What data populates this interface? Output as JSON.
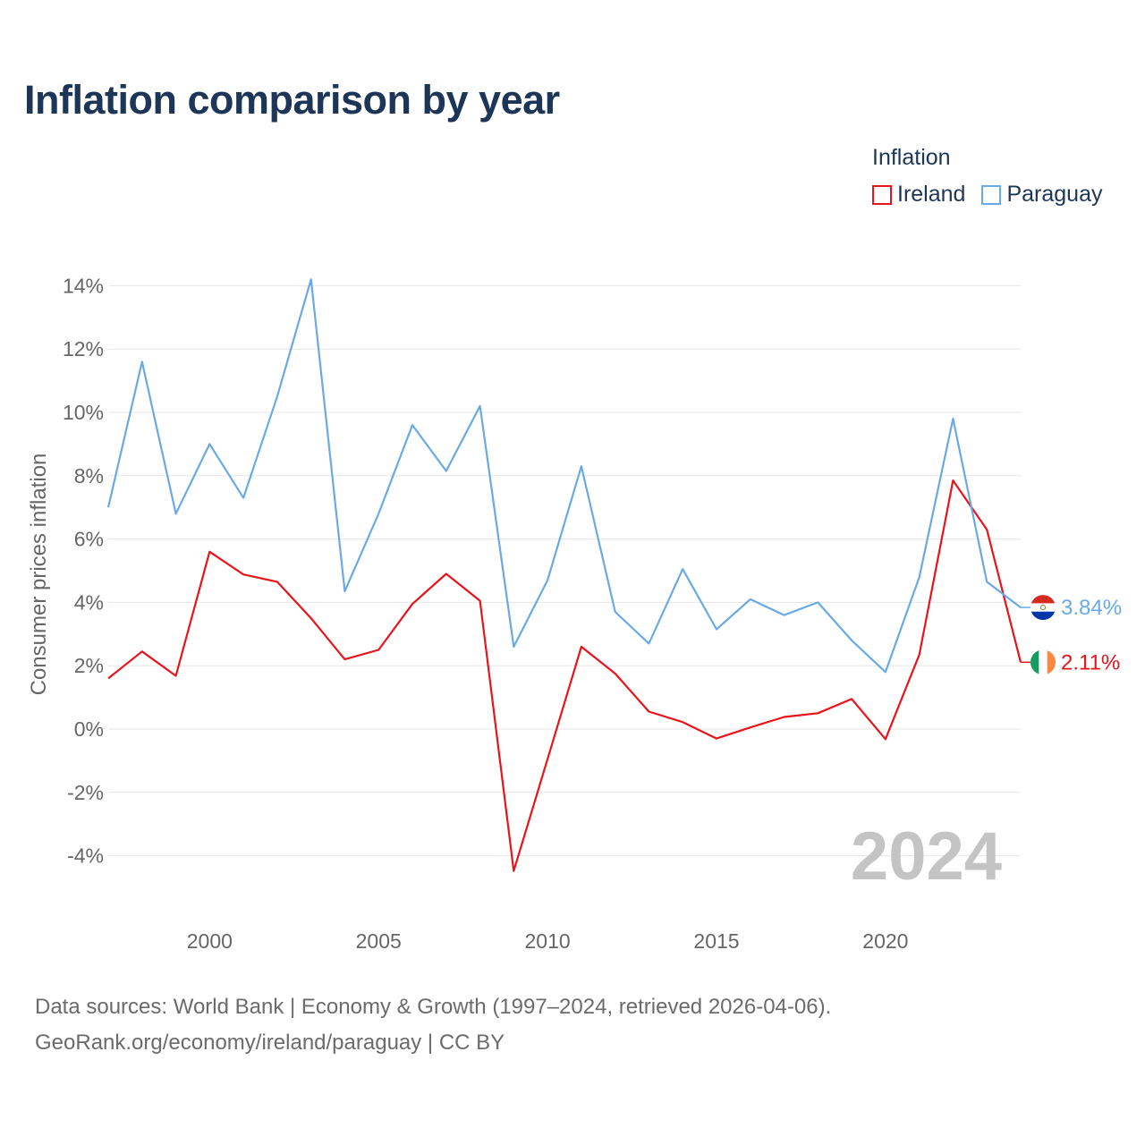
{
  "title": "Inflation comparison by year",
  "legend": {
    "title": "Inflation",
    "items": [
      {
        "name": "Ireland",
        "color": "#e8131b"
      },
      {
        "name": "Paraguay",
        "color": "#6aaae4"
      }
    ]
  },
  "year_watermark": "2024",
  "source": {
    "line1": "Data sources: World Bank | Economy & Growth (1997–2024, retrieved 2026-04-06).",
    "line2": "GeoRank.org/economy/ireland/paraguay | CC BY"
  },
  "chart_data": {
    "type": "line",
    "title": "Inflation comparison by year",
    "xlabel": "",
    "ylabel": "Consumer prices inflation",
    "x": [
      1997,
      1998,
      1999,
      2000,
      2001,
      2002,
      2003,
      2004,
      2005,
      2006,
      2007,
      2008,
      2009,
      2010,
      2011,
      2012,
      2013,
      2014,
      2015,
      2016,
      2017,
      2018,
      2019,
      2020,
      2021,
      2022,
      2023,
      2024
    ],
    "xlim": [
      1997,
      2024
    ],
    "ylim": [
      -5,
      15
    ],
    "xticks": [
      2000,
      2005,
      2010,
      2015,
      2020
    ],
    "yticks": [
      -4,
      -2,
      0,
      2,
      4,
      6,
      8,
      10,
      12,
      14
    ],
    "ytick_labels": [
      "-4%",
      "-2%",
      "0%",
      "2%",
      "4%",
      "6%",
      "8%",
      "10%",
      "12%",
      "14%"
    ],
    "grid": true,
    "series": [
      {
        "name": "Ireland",
        "color": "#e8131b",
        "values": [
          1.6,
          2.45,
          1.68,
          5.6,
          4.88,
          4.65,
          3.5,
          2.2,
          2.5,
          3.95,
          4.9,
          4.05,
          -4.48,
          -0.95,
          2.6,
          1.75,
          0.55,
          0.22,
          -0.3,
          0.05,
          0.38,
          0.5,
          0.95,
          -0.32,
          2.35,
          7.85,
          6.3,
          2.11
        ],
        "end_label": "2.11%"
      },
      {
        "name": "Paraguay",
        "color": "#6aaae4",
        "values": [
          7.0,
          11.6,
          6.8,
          9.0,
          7.3,
          10.5,
          14.2,
          4.35,
          6.8,
          9.6,
          8.15,
          10.2,
          2.6,
          4.7,
          8.3,
          3.7,
          2.7,
          5.05,
          3.15,
          4.1,
          3.6,
          4.0,
          2.8,
          1.8,
          4.8,
          9.8,
          4.65,
          3.84
        ],
        "end_label": "3.84%"
      }
    ]
  }
}
